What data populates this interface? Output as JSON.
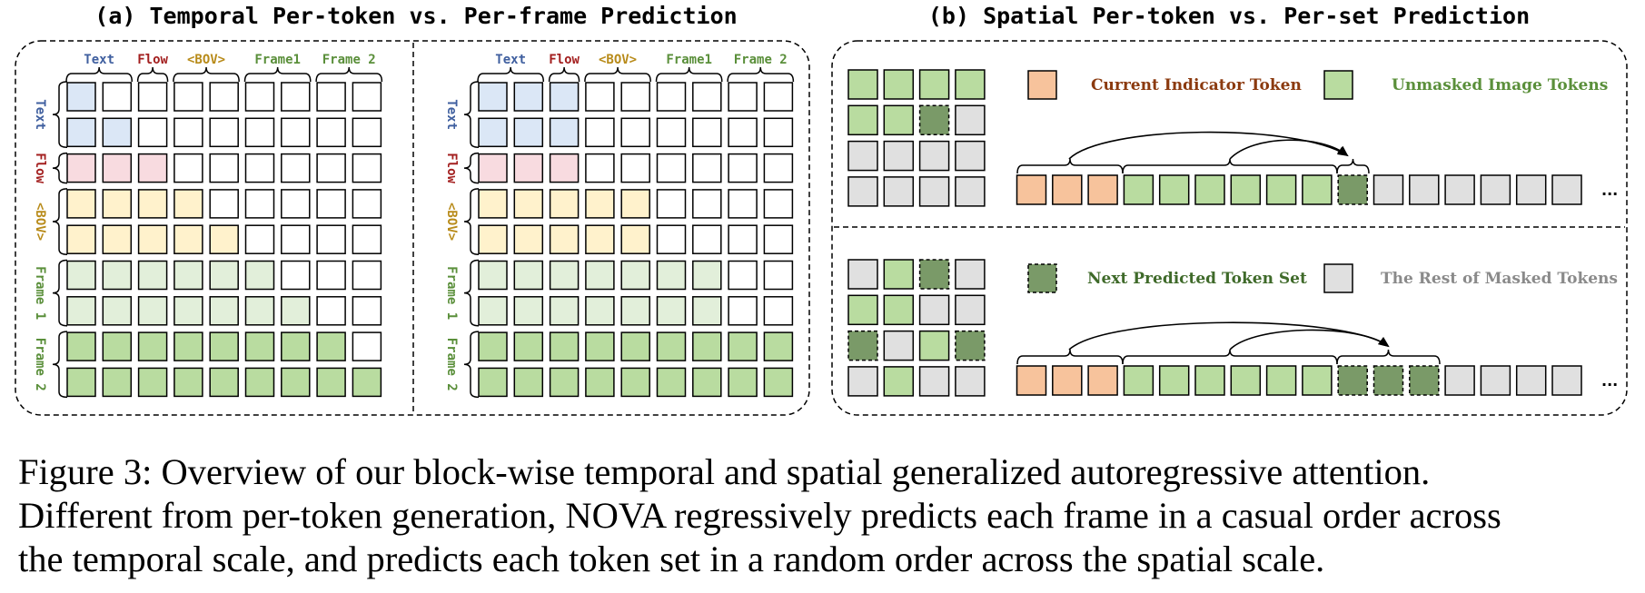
{
  "panel_a": {
    "title": "(a) Temporal Per-token vs. Per-frame Prediction",
    "column_labels": [
      "Text",
      "Flow",
      "<BOV>",
      "Frame1",
      "Frame 2"
    ],
    "row_labels": [
      "Text",
      "Flow",
      "<BOV>",
      "Frame 1",
      "Frame 2"
    ],
    "groups": [
      "Text",
      "Flow",
      "<BOV>",
      "Frame 1",
      "Frame 2"
    ],
    "group_sizes": [
      2,
      1,
      2,
      2,
      2
    ],
    "per_token_mask": [
      [
        1,
        0,
        0,
        0,
        0,
        0,
        0,
        0,
        0
      ],
      [
        1,
        1,
        0,
        0,
        0,
        0,
        0,
        0,
        0
      ],
      [
        1,
        1,
        1,
        0,
        0,
        0,
        0,
        0,
        0
      ],
      [
        1,
        1,
        1,
        1,
        0,
        0,
        0,
        0,
        0
      ],
      [
        1,
        1,
        1,
        1,
        1,
        0,
        0,
        0,
        0
      ],
      [
        1,
        1,
        1,
        1,
        1,
        1,
        0,
        0,
        0
      ],
      [
        1,
        1,
        1,
        1,
        1,
        1,
        1,
        0,
        0
      ],
      [
        1,
        1,
        1,
        1,
        1,
        1,
        1,
        1,
        0
      ],
      [
        1,
        1,
        1,
        1,
        1,
        1,
        1,
        1,
        1
      ]
    ],
    "per_frame_mask": [
      [
        1,
        1,
        1,
        0,
        0,
        0,
        0,
        0,
        0
      ],
      [
        1,
        1,
        1,
        0,
        0,
        0,
        0,
        0,
        0
      ],
      [
        1,
        1,
        1,
        0,
        0,
        0,
        0,
        0,
        0
      ],
      [
        1,
        1,
        1,
        1,
        1,
        0,
        0,
        0,
        0
      ],
      [
        1,
        1,
        1,
        1,
        1,
        0,
        0,
        0,
        0
      ],
      [
        1,
        1,
        1,
        1,
        1,
        1,
        1,
        0,
        0
      ],
      [
        1,
        1,
        1,
        1,
        1,
        1,
        1,
        0,
        0
      ],
      [
        1,
        1,
        1,
        1,
        1,
        1,
        1,
        1,
        1
      ],
      [
        1,
        1,
        1,
        1,
        1,
        1,
        1,
        1,
        1
      ]
    ]
  },
  "panel_b": {
    "title": "(b) Spatial Per-token vs. Per-set Prediction",
    "legend": {
      "current_indicator": "Current Indicator Token",
      "unmasked": "Unmasked Image Tokens",
      "next_predicted": "Next Predicted Token Set",
      "rest_masked": "The Rest of Masked Tokens"
    },
    "ellipsis": "...",
    "top_grid": [
      "u",
      "u",
      "u",
      "u",
      "u",
      "u",
      "n",
      "m",
      "m",
      "m",
      "m",
      "m",
      "m",
      "m",
      "m",
      "m"
    ],
    "bottom_grid": [
      "m",
      "u",
      "n",
      "m",
      "u",
      "u",
      "m",
      "m",
      "n",
      "m",
      "u",
      "n",
      "m",
      "u",
      "m",
      "m"
    ],
    "top_sequence": [
      "c",
      "c",
      "c",
      "u",
      "u",
      "u",
      "u",
      "u",
      "u",
      "n",
      "m",
      "m",
      "m",
      "m",
      "m",
      "m"
    ],
    "bottom_sequence": [
      "c",
      "c",
      "c",
      "u",
      "u",
      "u",
      "u",
      "u",
      "u",
      "n",
      "n",
      "n",
      "m",
      "m",
      "m",
      "m"
    ]
  },
  "colors": {
    "text": "#dbe7f6",
    "flow": "#f8dbe0",
    "bov": "#fff2cc",
    "frame1": "#e2efda",
    "frame2": "#b9dca0",
    "indicator": "#f7c39c",
    "unmasked": "#b9dca0",
    "predicted": "#7a9a68",
    "masked": "#e0e0e0",
    "label_text": "#3f5f9f",
    "label_flow": "#a31f1f",
    "label_bov": "#b88b1a",
    "label_frame": "#5a8f3a",
    "legend_indicator": "#8b3a0f",
    "legend_unmasked": "#5a8f3a",
    "legend_predicted": "#3f6a2a",
    "legend_masked": "#8a8a8a"
  },
  "caption": [
    "Figure 3: Overview of our block-wise temporal and spatial generalized autoregressive attention.",
    "Different from per-token generation, NOVA regressively predicts each frame in a casual order across",
    "the temporal scale, and predicts each token set in a random order across the spatial scale."
  ]
}
